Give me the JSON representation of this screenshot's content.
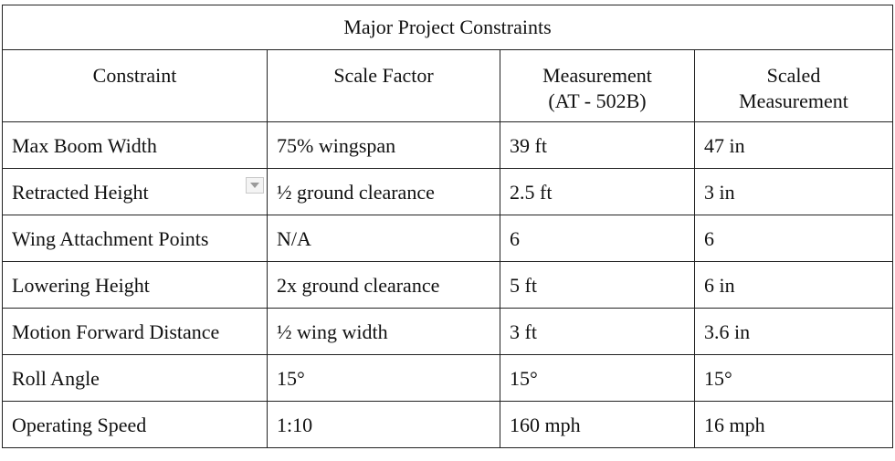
{
  "table": {
    "title": "Major Project Constraints",
    "headers": [
      "Constraint",
      "Scale Factor",
      "Measurement\n(AT - 502B)",
      "Scaled\nMeasurement"
    ],
    "rows": [
      [
        "Max Boom Width",
        "75% wingspan",
        "39 ft",
        "47 in"
      ],
      [
        "Retracted Height",
        "½ ground clearance",
        "2.5 ft",
        "3 in"
      ],
      [
        "Wing Attachment Points",
        "N/A",
        "6",
        "6"
      ],
      [
        "Lowering Height",
        "2x ground clearance",
        "5 ft",
        "6 in"
      ],
      [
        "Motion Forward Distance",
        "½ wing width",
        "3 ft",
        "3.6 in"
      ],
      [
        "Roll Angle",
        "15°",
        "15°",
        "15°"
      ],
      [
        "Operating Speed",
        "1:10",
        "160 mph",
        "16 mph"
      ]
    ]
  }
}
